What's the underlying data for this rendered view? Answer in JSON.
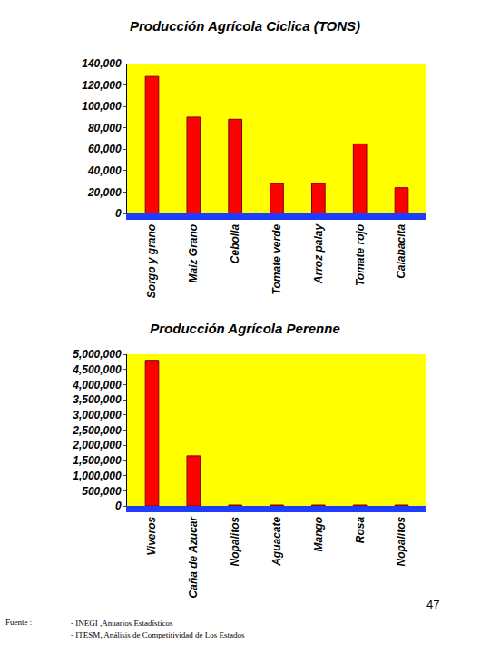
{
  "chart_data": [
    {
      "type": "bar",
      "title": "Producción Agrícola Ciclica (TONS)",
      "categories": [
        "Sorgo y grano",
        "Maiz Grano",
        "Cebolla",
        "Tomate verde",
        "Arroz palay",
        "Tomate rojo",
        "Calabacita"
      ],
      "values": [
        128000,
        90000,
        88000,
        28000,
        28000,
        65000,
        24000
      ],
      "color": "#ff0000",
      "ylim": [
        0,
        140000
      ],
      "yticks": [
        0,
        {
          "value": 20000,
          "label": "20,000"
        },
        {
          "value": 40000,
          "label": "40,000"
        },
        {
          "value": 60000,
          "label": "60,000"
        },
        {
          "value": 80000,
          "label": "80,000"
        },
        {
          "value": 100000,
          "label": "100,000"
        },
        {
          "value": 120000,
          "label": "120,000"
        },
        {
          "value": 140000,
          "label": "140,000"
        }
      ],
      "grid": false
    },
    {
      "type": "bar",
      "title": "Producción Agrícola Perenne",
      "categories": [
        "Viveros",
        "Caña de Azucar",
        "Nopalitos",
        "Aguacate",
        "Mango",
        "Rosa",
        "Nopalitos"
      ],
      "values": [
        4800000,
        1650000,
        30000,
        30000,
        30000,
        30000,
        30000
      ],
      "color": "#ff0000",
      "ylim": [
        0,
        5000000
      ],
      "yticks": [
        0,
        {
          "value": 500000,
          "label": "500,000"
        },
        {
          "value": 1000000,
          "label": "1,000,000"
        },
        {
          "value": 1500000,
          "label": "1,500,000"
        },
        {
          "value": 2000000,
          "label": "2,000,000"
        },
        {
          "value": 2500000,
          "label": "2,500,000"
        },
        {
          "value": 3000000,
          "label": "3,000,000"
        },
        {
          "value": 3500000,
          "label": "3,500,000"
        },
        {
          "value": 4000000,
          "label": "4,000,000"
        },
        {
          "value": 4500000,
          "label": "4,500,000"
        },
        {
          "value": 5000000,
          "label": "5,000,000"
        }
      ],
      "grid": false
    }
  ],
  "footer": {
    "source_label": "Fuente :",
    "sources": [
      "- INEGI ,Anuarios Estadísticos",
      "- ITESM, Análisis de Competitividad de Los Estados"
    ],
    "page": 47
  }
}
